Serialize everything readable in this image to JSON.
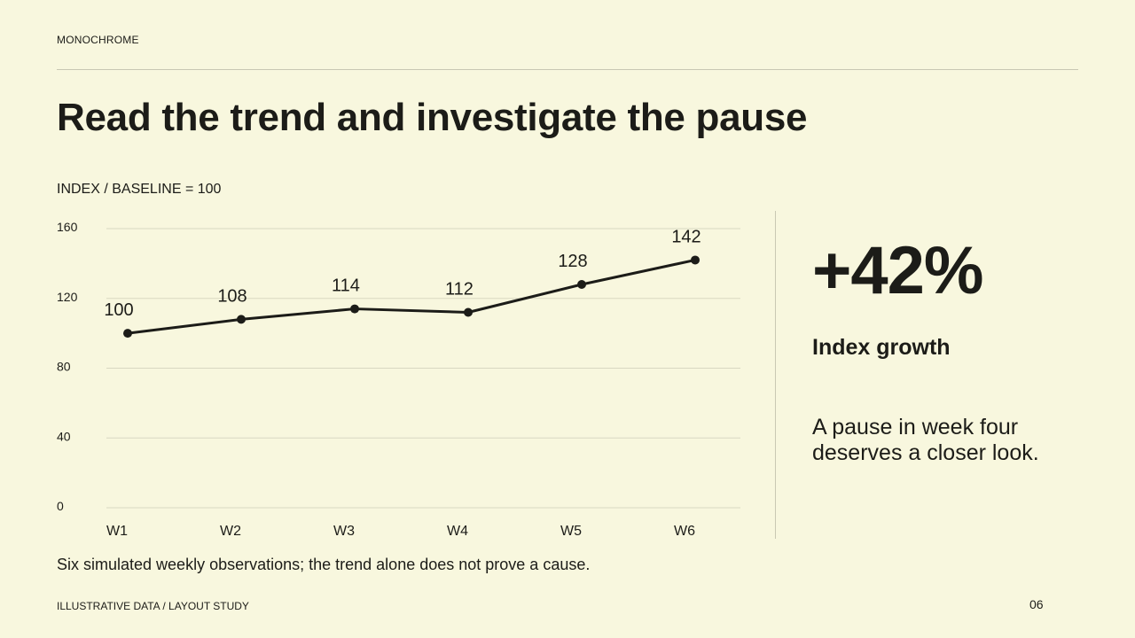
{
  "header": {
    "eyebrow": "MONOCHROME",
    "title": "Read the trend and investigate the pause"
  },
  "chart_caption": "INDEX / BASELINE = 100",
  "chart_data": {
    "type": "line",
    "categories": [
      "W1",
      "W2",
      "W3",
      "W4",
      "W5",
      "W6"
    ],
    "series": [
      {
        "values": [
          100,
          108,
          114,
          112,
          128,
          142
        ]
      }
    ],
    "ylim": [
      0,
      160
    ],
    "yticks": [
      0,
      40,
      80,
      120,
      160
    ],
    "grid": true,
    "data_labels": true,
    "colors": {
      "line": "#1c1c18",
      "grid": "#d9d8c2"
    }
  },
  "kpi": {
    "value": "+42%",
    "label": "Index growth",
    "note": "A pause in week four deserves a closer look."
  },
  "footnote": "Six simulated weekly observations; the trend alone does not prove a cause.",
  "footer": {
    "left": "ILLUSTRATIVE DATA / LAYOUT STUDY",
    "page_number": "06"
  }
}
